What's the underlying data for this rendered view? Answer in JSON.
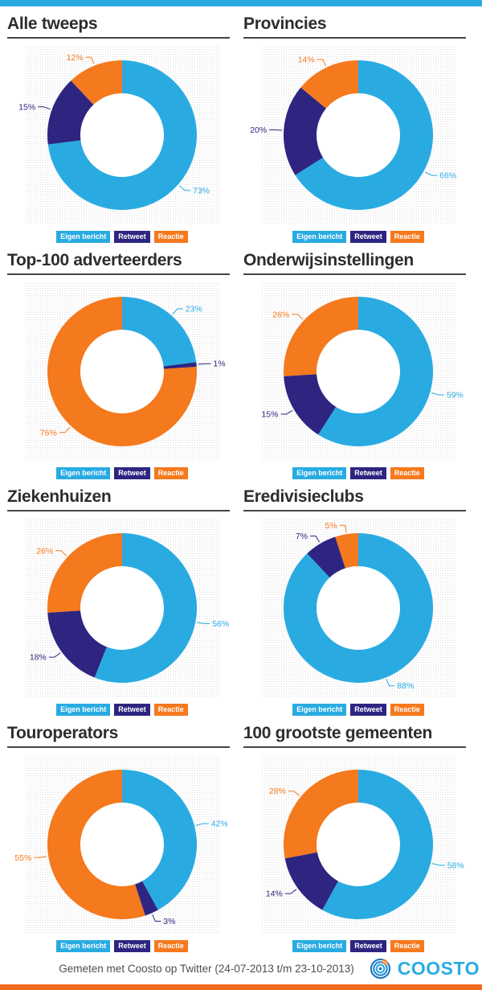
{
  "page": {
    "top_bar_color": "#29ABE2",
    "bottom_bar_color": "#F26C1E"
  },
  "footer": {
    "caption": "Gemeten met Coosto op Twitter (24-07-2013 t/m 23-10-2013)",
    "brand": "COOSTO",
    "brand_color": "#29ABE2"
  },
  "legend": {
    "labels": [
      "Eigen bericht",
      "Retweet",
      "Reactie"
    ],
    "position": "bottom"
  },
  "series_colors": [
    "#29ABE2",
    "#2E2581",
    "#F5791D"
  ],
  "chart_data": [
    {
      "type": "donut",
      "title": "Alle tweeps",
      "categories": [
        "Eigen bericht",
        "Retweet",
        "Reactie"
      ],
      "values": [
        73,
        15,
        12
      ]
    },
    {
      "type": "donut",
      "title": "Provincies",
      "categories": [
        "Eigen bericht",
        "Retweet",
        "Reactie"
      ],
      "values": [
        66,
        20,
        14
      ]
    },
    {
      "type": "donut",
      "title": "Top-100 adverteerders",
      "categories": [
        "Eigen bericht",
        "Retweet",
        "Reactie"
      ],
      "values": [
        23,
        1,
        76
      ]
    },
    {
      "type": "donut",
      "title": "Onderwijsinstellingen",
      "categories": [
        "Eigen bericht",
        "Retweet",
        "Reactie"
      ],
      "values": [
        59,
        15,
        26
      ]
    },
    {
      "type": "donut",
      "title": "Ziekenhuizen",
      "categories": [
        "Eigen bericht",
        "Retweet",
        "Reactie"
      ],
      "values": [
        56,
        18,
        26
      ]
    },
    {
      "type": "donut",
      "title": "Eredivisieclubs",
      "categories": [
        "Eigen bericht",
        "Retweet",
        "Reactie"
      ],
      "values": [
        88,
        7,
        5
      ]
    },
    {
      "type": "donut",
      "title": "Touroperators",
      "categories": [
        "Eigen bericht",
        "Retweet",
        "Reactie"
      ],
      "values": [
        42,
        3,
        55
      ]
    },
    {
      "type": "donut",
      "title": "100 grootste gemeenten",
      "categories": [
        "Eigen bericht",
        "Retweet",
        "Reactie"
      ],
      "values": [
        58,
        14,
        28
      ]
    }
  ]
}
